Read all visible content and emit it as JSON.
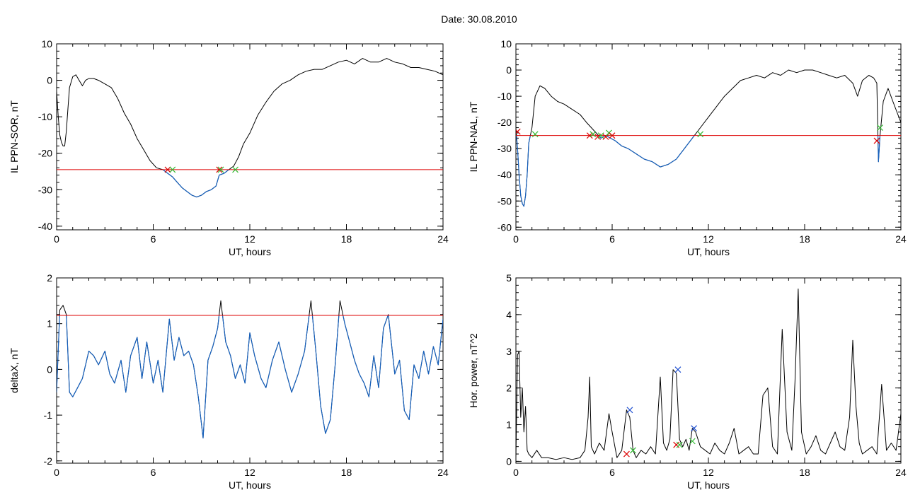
{
  "figure": {
    "title_label": "Date:",
    "title_date": "30.08.2010"
  },
  "colors": {
    "signal": "#000000",
    "below_threshold": "#1560bd",
    "threshold": "#dd0000",
    "marker_red": "#dd0000",
    "marker_green": "#33bb33",
    "marker_blue": "#1f4fd0"
  },
  "chart_data": [
    {
      "type": "line",
      "name": "IL PPN-SOR",
      "xlabel": "UT, hours",
      "ylabel": "IL PPN-SOR, nT",
      "xlim": [
        0,
        24
      ],
      "ylim": [
        -41,
        10
      ],
      "xticks": [
        0,
        6,
        12,
        18,
        24
      ],
      "yticks": [
        10,
        0,
        -10,
        -20,
        -30,
        -40
      ],
      "threshold": -24.5,
      "x": [
        0,
        0.1,
        0.2,
        0.3,
        0.4,
        0.5,
        0.6,
        0.7,
        0.8,
        1.0,
        1.2,
        1.4,
        1.6,
        1.8,
        2.0,
        2.3,
        2.6,
        3.0,
        3.4,
        3.8,
        4.2,
        4.6,
        5.0,
        5.4,
        5.8,
        6.2,
        6.6,
        6.9,
        7.2,
        7.5,
        7.8,
        8.1,
        8.4,
        8.7,
        9.0,
        9.3,
        9.6,
        9.9,
        10.1,
        10.4,
        10.7,
        11.0,
        11.3,
        11.6,
        12.0,
        12.5,
        13.0,
        13.5,
        14.0,
        14.5,
        15.0,
        15.5,
        16.0,
        16.5,
        17.0,
        17.5,
        18.0,
        18.5,
        19.0,
        19.5,
        20.0,
        20.5,
        21.0,
        21.5,
        22.0,
        22.5,
        23.0,
        23.5,
        24.0
      ],
      "y": [
        -3,
        -10,
        -15,
        -17,
        -18,
        -18,
        -14,
        -8,
        -2,
        1,
        1.5,
        0,
        -1.5,
        0,
        0.5,
        0.5,
        0,
        -1,
        -2,
        -5,
        -9,
        -12,
        -16,
        -19,
        -22,
        -24,
        -24.5,
        -25.5,
        -26.5,
        -28,
        -29.5,
        -30.5,
        -31.5,
        -32,
        -31.5,
        -30.5,
        -30,
        -29,
        -26,
        -25.5,
        -24.5,
        -23.5,
        -21,
        -17.5,
        -14.5,
        -9.5,
        -6,
        -3,
        -1,
        0,
        1.5,
        2.5,
        3,
        3,
        4,
        5,
        5.5,
        4.5,
        6,
        5,
        5,
        6,
        5,
        4.5,
        3.5,
        3.5,
        3,
        2.5,
        1.5
      ],
      "markers": [
        {
          "x": 6.9,
          "y": -24.5,
          "color": "red"
        },
        {
          "x": 7.2,
          "y": -24.5,
          "color": "green"
        },
        {
          "x": 10.1,
          "y": -24.5,
          "color": "red"
        },
        {
          "x": 10.2,
          "y": -24.5,
          "color": "green"
        },
        {
          "x": 11.1,
          "y": -24.5,
          "color": "green"
        }
      ]
    },
    {
      "type": "line",
      "name": "IL PPN-NAL",
      "xlabel": "UT, hours",
      "ylabel": "IL PPN-NAL, nT",
      "xlim": [
        0,
        24
      ],
      "ylim": [
        -61,
        10
      ],
      "xticks": [
        0,
        6,
        12,
        18,
        24
      ],
      "yticks": [
        10,
        0,
        -10,
        -20,
        -30,
        -40,
        -50,
        -60
      ],
      "threshold": -25,
      "x": [
        0,
        0.1,
        0.2,
        0.3,
        0.4,
        0.5,
        0.6,
        0.7,
        0.8,
        1.0,
        1.2,
        1.5,
        1.8,
        2.2,
        2.6,
        3.0,
        3.5,
        4.0,
        4.4,
        4.7,
        5.0,
        5.3,
        5.6,
        5.9,
        6.2,
        6.6,
        7.0,
        7.5,
        8.0,
        8.5,
        9.0,
        9.5,
        10.0,
        10.5,
        11.0,
        11.5,
        12.0,
        12.5,
        13.0,
        13.5,
        14.0,
        14.5,
        15.0,
        15.5,
        16.0,
        16.5,
        17.0,
        17.5,
        18.0,
        18.5,
        19.0,
        19.5,
        20.0,
        20.5,
        21.0,
        21.3,
        21.6,
        22.0,
        22.3,
        22.5,
        22.6,
        22.7,
        22.9,
        23.2,
        23.5,
        24.0
      ],
      "y": [
        -22,
        -30,
        -40,
        -48,
        -51,
        -52,
        -48,
        -40,
        -28,
        -22,
        -10,
        -6,
        -7,
        -10,
        -12,
        -13,
        -15,
        -17,
        -20,
        -22,
        -24,
        -26,
        -25,
        -26,
        -27,
        -29,
        -30,
        -32,
        -34,
        -35,
        -37,
        -36,
        -34,
        -30,
        -26,
        -22,
        -18,
        -14,
        -10,
        -7,
        -4,
        -3,
        -2,
        -3,
        -1,
        -2,
        0,
        -1,
        0,
        0,
        -1,
        -2,
        -3,
        -2,
        -5,
        -10,
        -4,
        -2,
        -3,
        -5,
        -35,
        -25,
        -12,
        -7,
        -12,
        -20
      ],
      "markers": [
        {
          "x": 0.1,
          "y": -23.5,
          "color": "red"
        },
        {
          "x": 1.2,
          "y": -24.5,
          "color": "green"
        },
        {
          "x": 4.6,
          "y": -25,
          "color": "red"
        },
        {
          "x": 4.8,
          "y": -24.5,
          "color": "green"
        },
        {
          "x": 5.1,
          "y": -25.5,
          "color": "red"
        },
        {
          "x": 5.3,
          "y": -25,
          "color": "green"
        },
        {
          "x": 5.6,
          "y": -25.5,
          "color": "red"
        },
        {
          "x": 5.8,
          "y": -24,
          "color": "green"
        },
        {
          "x": 6.0,
          "y": -25,
          "color": "red"
        },
        {
          "x": 11.5,
          "y": -24.5,
          "color": "green"
        },
        {
          "x": 22.5,
          "y": -27,
          "color": "red"
        },
        {
          "x": 22.7,
          "y": -22,
          "color": "green"
        }
      ]
    },
    {
      "type": "line",
      "name": "deltaX",
      "xlabel": "UT, hours",
      "ylabel": "deltaX, nT",
      "xlim": [
        0,
        24
      ],
      "ylim": [
        -2.05,
        2
      ],
      "xticks": [
        0,
        6,
        12,
        18,
        24
      ],
      "yticks": [
        2,
        1,
        0,
        -1,
        -2
      ],
      "threshold": 1.18,
      "x": [
        0,
        0.2,
        0.4,
        0.6,
        0.8,
        1.0,
        1.3,
        1.6,
        2.0,
        2.3,
        2.6,
        3.0,
        3.3,
        3.6,
        4.0,
        4.3,
        4.6,
        5.0,
        5.3,
        5.6,
        6.0,
        6.3,
        6.6,
        7.0,
        7.3,
        7.6,
        7.9,
        8.2,
        8.5,
        8.8,
        9.1,
        9.4,
        9.7,
        10.0,
        10.2,
        10.5,
        10.8,
        11.1,
        11.4,
        11.7,
        12.0,
        12.3,
        12.7,
        13.0,
        13.4,
        13.8,
        14.2,
        14.6,
        15.0,
        15.4,
        15.8,
        16.1,
        16.4,
        16.7,
        17.0,
        17.3,
        17.6,
        17.9,
        18.2,
        18.5,
        18.8,
        19.1,
        19.4,
        19.7,
        20.0,
        20.3,
        20.6,
        21.0,
        21.3,
        21.6,
        21.9,
        22.2,
        22.5,
        22.8,
        23.1,
        23.4,
        23.7,
        24.0
      ],
      "y": [
        -0.5,
        1.3,
        1.4,
        1.2,
        -0.5,
        -0.6,
        -0.4,
        -0.2,
        0.4,
        0.3,
        0.1,
        0.4,
        -0.1,
        -0.3,
        0.2,
        -0.5,
        0.3,
        0.7,
        -0.2,
        0.6,
        -0.3,
        0.2,
        -0.5,
        1.1,
        0.2,
        0.7,
        0.3,
        0.4,
        0.1,
        -0.6,
        -1.5,
        0.2,
        0.5,
        0.9,
        1.5,
        0.6,
        0.3,
        -0.2,
        0.1,
        -0.3,
        0.8,
        0.3,
        -0.2,
        -0.4,
        0.2,
        0.6,
        0.0,
        -0.5,
        -0.1,
        0.4,
        1.5,
        0.4,
        -0.8,
        -1.4,
        -1.1,
        0.1,
        1.5,
        1.0,
        0.6,
        0.2,
        -0.1,
        -0.3,
        -0.6,
        0.3,
        -0.4,
        0.9,
        1.2,
        -0.1,
        0.2,
        -0.9,
        -1.1,
        0.1,
        -0.2,
        0.4,
        -0.1,
        0.5,
        0.1,
        1.1
      ],
      "markers": []
    },
    {
      "type": "line",
      "name": "Hor. power",
      "xlabel": "UT, hours",
      "ylabel": "Hor. power, nT^2",
      "xlim": [
        0,
        24
      ],
      "ylim": [
        -0.05,
        5
      ],
      "xticks": [
        0,
        6,
        12,
        18,
        24
      ],
      "yticks": [
        5,
        4,
        3,
        2,
        1,
        0
      ],
      "threshold": null,
      "x": [
        0,
        0.1,
        0.2,
        0.3,
        0.4,
        0.5,
        0.6,
        0.7,
        0.8,
        1.0,
        1.3,
        1.6,
        2.0,
        2.5,
        3.0,
        3.5,
        4.0,
        4.3,
        4.5,
        4.6,
        4.7,
        4.9,
        5.2,
        5.5,
        5.8,
        6.0,
        6.3,
        6.6,
        6.9,
        7.1,
        7.3,
        7.5,
        7.8,
        8.1,
        8.4,
        8.7,
        9.0,
        9.2,
        9.4,
        9.6,
        9.8,
        10.0,
        10.2,
        10.4,
        10.6,
        10.8,
        11.0,
        11.2,
        11.5,
        11.8,
        12.1,
        12.4,
        12.7,
        13.0,
        13.3,
        13.6,
        13.9,
        14.2,
        14.5,
        14.8,
        15.1,
        15.4,
        15.7,
        16.0,
        16.3,
        16.6,
        16.9,
        17.2,
        17.4,
        17.6,
        17.8,
        18.1,
        18.4,
        18.7,
        19.0,
        19.3,
        19.6,
        19.9,
        20.2,
        20.5,
        20.8,
        21.0,
        21.2,
        21.4,
        21.6,
        21.9,
        22.2,
        22.5,
        22.8,
        23.1,
        23.4,
        23.7,
        24.0
      ],
      "y": [
        0.1,
        2.9,
        3.0,
        1.2,
        2.0,
        0.8,
        1.5,
        0.3,
        0.2,
        0.1,
        0.3,
        0.1,
        0.1,
        0.05,
        0.1,
        0.05,
        0.1,
        0.3,
        1.2,
        2.3,
        0.4,
        0.2,
        0.5,
        0.3,
        1.3,
        0.8,
        0.1,
        0.3,
        1.4,
        1.2,
        0.3,
        0.1,
        0.3,
        0.2,
        0.4,
        0.2,
        2.3,
        0.5,
        0.3,
        0.6,
        2.5,
        2.4,
        0.6,
        0.4,
        0.6,
        0.3,
        0.9,
        0.8,
        0.4,
        0.3,
        0.2,
        0.5,
        0.3,
        0.2,
        0.5,
        0.9,
        0.2,
        0.3,
        0.4,
        0.2,
        0.2,
        1.8,
        2.0,
        0.4,
        0.2,
        3.6,
        0.8,
        0.3,
        2.2,
        4.7,
        0.8,
        0.2,
        0.4,
        0.7,
        0.3,
        0.2,
        0.5,
        0.8,
        0.4,
        0.3,
        1.2,
        3.3,
        1.5,
        0.5,
        0.2,
        0.3,
        0.4,
        0.2,
        2.1,
        0.3,
        0.5,
        0.3,
        1.3
      ],
      "markers": [
        {
          "x": 6.9,
          "y": 0.2,
          "color": "red"
        },
        {
          "x": 7.1,
          "y": 1.4,
          "color": "blue"
        },
        {
          "x": 7.3,
          "y": 0.3,
          "color": "green"
        },
        {
          "x": 10.0,
          "y": 0.45,
          "color": "red"
        },
        {
          "x": 10.1,
          "y": 2.5,
          "color": "blue"
        },
        {
          "x": 10.2,
          "y": 0.45,
          "color": "green"
        },
        {
          "x": 11.0,
          "y": 0.55,
          "color": "green"
        },
        {
          "x": 11.1,
          "y": 0.9,
          "color": "blue"
        }
      ]
    }
  ]
}
